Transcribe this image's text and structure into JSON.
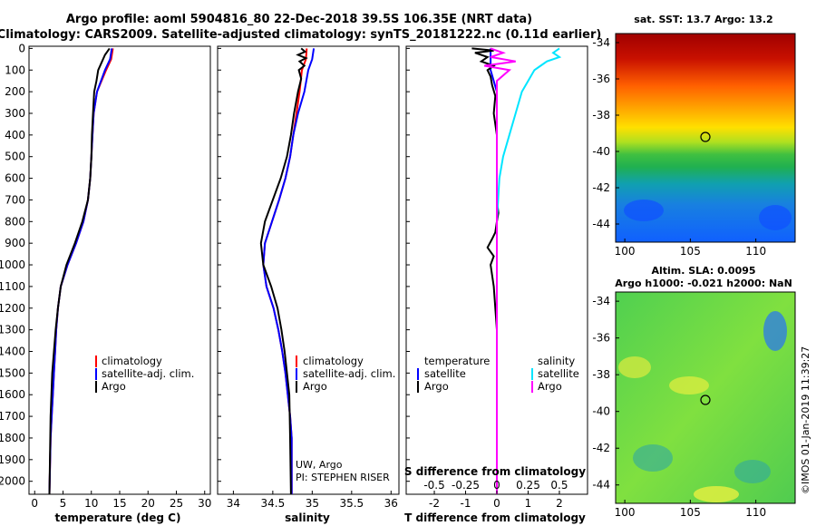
{
  "title": {
    "line1": "Argo profile: aoml 5904816_80 22-Dec-2018 39.5S 106.35E (NRT data)",
    "line2": "Climatology: CARS2009. Satellite-adjusted climatology: synTS_20181222.nc (0.11d earlier)"
  },
  "colors": {
    "climatology": "#ff0000",
    "satellite": "#0000ff",
    "argo": "#000000",
    "salinity_sat": "#00e5ff",
    "salinity_argo": "#ff00ff"
  },
  "depth_ticks": [
    "0",
    "100",
    "200",
    "300",
    "400",
    "500",
    "600",
    "700",
    "800",
    "900",
    "1000",
    "1100",
    "1200",
    "1300",
    "1400",
    "1500",
    "1600",
    "1700",
    "1800",
    "1900",
    "2000"
  ],
  "panels": {
    "temperature": {
      "xlabel": "temperature (deg C)",
      "xticks": [
        "0",
        "5",
        "10",
        "15",
        "20",
        "25",
        "30"
      ],
      "legend": [
        "climatology",
        "satellite-adj. clim.",
        "Argo"
      ]
    },
    "salinity": {
      "xlabel": "salinity",
      "xticks": [
        "34",
        "34.5",
        "35",
        "35.5",
        "36"
      ],
      "legend": [
        "climatology",
        "satellite-adj. clim.",
        "Argo"
      ],
      "note1": "UW, Argo",
      "note2": "PI: STEPHEN RISER"
    },
    "difference": {
      "xlabel": "T difference from climatology",
      "xticks": [
        "-2",
        "-1",
        "0",
        "1",
        "2"
      ],
      "s_label": "S difference from climatology",
      "s_ticks": [
        "-0.5",
        "-0.25",
        "0",
        "0.25",
        "0.5"
      ],
      "legend_t_head": "temperature",
      "legend_t": [
        "satellite",
        "Argo"
      ],
      "legend_s_head": "salinity",
      "legend_s": [
        "satellite",
        "Argo"
      ]
    }
  },
  "maps": {
    "sst_title": "sat. SST: 13.7 Argo: 13.2",
    "sla_title1": "Altim. SLA: 0.0095",
    "sla_title2": "Argo h1000: -0.021 h2000: NaN",
    "lat_ticks": [
      "-34",
      "-36",
      "-38",
      "-40",
      "-42",
      "-44"
    ],
    "lon_ticks": [
      "100",
      "105",
      "110"
    ],
    "credit": "©IMOS 01-Jan-2019 11:39:27"
  },
  "chart_data": [
    {
      "type": "line",
      "title": "",
      "xlabel": "temperature (deg C)",
      "ylabel": "",
      "xlim": [
        -1,
        31
      ],
      "ylim": [
        2060,
        -10
      ],
      "series": [
        {
          "name": "climatology",
          "x": [
            13.8,
            13.5,
            12.6,
            11.0,
            10.4,
            10.2,
            10.0,
            9.8,
            9.4,
            8.6,
            7.3,
            5.8,
            4.6,
            4.1,
            3.8,
            3.6,
            3.4,
            3.2,
            3.0,
            2.8,
            2.6
          ],
          "y": [
            0,
            50,
            100,
            200,
            300,
            400,
            500,
            600,
            700,
            800,
            900,
            1000,
            1100,
            1200,
            1300,
            1400,
            1500,
            1600,
            1700,
            1800,
            2060
          ]
        },
        {
          "name": "satellite-adj. clim.",
          "x": [
            13.6,
            13.3,
            12.4,
            11.0,
            10.4,
            10.2,
            10.0,
            9.8,
            9.4,
            8.6,
            7.3,
            5.8,
            4.6,
            4.1,
            3.8,
            3.6,
            3.4,
            3.2,
            3.0,
            2.8,
            2.6
          ],
          "y": [
            0,
            50,
            100,
            200,
            300,
            400,
            500,
            600,
            700,
            800,
            900,
            1000,
            1100,
            1200,
            1300,
            1400,
            1500,
            1600,
            1700,
            1800,
            2060
          ]
        },
        {
          "name": "Argo",
          "x": [
            13.2,
            12.4,
            11.9,
            11.2,
            10.9,
            10.5,
            10.3,
            10.1,
            10.0,
            9.8,
            9.4,
            8.4,
            7.1,
            5.6,
            4.6,
            4.1,
            3.7,
            3.4,
            3.1,
            2.8,
            2.6
          ],
          "y": [
            0,
            30,
            60,
            100,
            150,
            200,
            300,
            400,
            500,
            600,
            700,
            800,
            900,
            1000,
            1100,
            1200,
            1300,
            1400,
            1500,
            1700,
            2060
          ]
        }
      ]
    },
    {
      "type": "line",
      "title": "",
      "xlabel": "salinity",
      "ylabel": "",
      "xlim": [
        33.8,
        36.1
      ],
      "ylim": [
        2060,
        -10
      ],
      "series": [
        {
          "name": "climatology",
          "x": [
            34.93,
            34.92,
            34.87,
            34.84,
            34.8,
            34.76,
            34.72,
            34.66,
            34.58,
            34.49,
            34.4,
            34.38,
            34.42,
            34.51,
            34.57,
            34.62,
            34.66,
            34.69,
            34.72,
            34.74,
            34.74
          ],
          "y": [
            0,
            50,
            100,
            200,
            300,
            400,
            500,
            600,
            700,
            800,
            900,
            1000,
            1100,
            1200,
            1300,
            1400,
            1500,
            1600,
            1700,
            1800,
            2060
          ]
        },
        {
          "name": "satellite-adj. clim.",
          "x": [
            35.02,
            35.0,
            34.95,
            34.9,
            34.82,
            34.76,
            34.72,
            34.66,
            34.58,
            34.49,
            34.4,
            34.38,
            34.42,
            34.51,
            34.57,
            34.62,
            34.66,
            34.69,
            34.72,
            34.74,
            34.74
          ],
          "y": [
            0,
            50,
            100,
            200,
            300,
            400,
            500,
            600,
            700,
            800,
            900,
            1000,
            1100,
            1200,
            1300,
            1400,
            1500,
            1600,
            1700,
            1800,
            2060
          ]
        },
        {
          "name": "Argo",
          "x": [
            34.86,
            34.91,
            34.82,
            34.92,
            34.84,
            34.9,
            34.83,
            34.86,
            34.82,
            34.77,
            34.73,
            34.68,
            34.6,
            34.5,
            34.4,
            34.35,
            34.38,
            34.48,
            34.56,
            34.61,
            34.65,
            34.68,
            34.71,
            34.72,
            34.73
          ],
          "y": [
            0,
            15,
            30,
            45,
            60,
            80,
            100,
            140,
            200,
            300,
            400,
            500,
            600,
            700,
            800,
            900,
            1000,
            1100,
            1200,
            1300,
            1400,
            1500,
            1600,
            1800,
            2060
          ]
        }
      ]
    },
    {
      "type": "line",
      "title": "",
      "xlabel": "T difference from climatology",
      "ylabel": "",
      "xlim": [
        -2.9,
        2.9
      ],
      "ylim": [
        2060,
        -10
      ],
      "series": [
        {
          "name": "temperature satellite",
          "x": [
            -0.2,
            -0.2,
            -0.2,
            0,
            0,
            0,
            0,
            0,
            0,
            0,
            0,
            0,
            0,
            0,
            0,
            0,
            0,
            0,
            0
          ],
          "y": [
            0,
            50,
            100,
            200,
            300,
            400,
            500,
            600,
            700,
            800,
            900,
            1000,
            1100,
            1200,
            1300,
            1400,
            1500,
            1700,
            2060
          ]
        },
        {
          "name": "temperature Argo",
          "x": [
            -0.8,
            -0.1,
            -0.7,
            -0.3,
            -0.5,
            -0.1,
            -0.3,
            -0.2,
            -0.15,
            -0.05,
            -0.1,
            0,
            0,
            0,
            0,
            0.05,
            0,
            -0.05,
            -0.15,
            -0.3,
            -0.1,
            -0.2,
            -0.1,
            0,
            0,
            0,
            0
          ],
          "y": [
            0,
            10,
            20,
            40,
            60,
            80,
            100,
            130,
            170,
            220,
            300,
            400,
            500,
            600,
            700,
            760,
            800,
            850,
            880,
            920,
            960,
            1000,
            1100,
            1300,
            1500,
            1800,
            2060
          ]
        },
        {
          "name": "salinity satellite",
          "x": [
            0.5,
            0.45,
            0.5,
            0.4,
            0.35,
            0.3,
            0.25,
            0.2,
            0.15,
            0.1,
            0.05,
            0.02,
            0,
            0,
            0,
            0,
            0
          ],
          "y": [
            0,
            20,
            40,
            60,
            80,
            100,
            150,
            200,
            300,
            400,
            500,
            600,
            800,
            1000,
            1400,
            1800,
            2060
          ]
        },
        {
          "name": "salinity Argo",
          "x": [
            -0.05,
            0.05,
            -0.05,
            0.15,
            -0.1,
            0.1,
            0,
            0,
            0,
            0,
            0,
            0,
            0,
            0
          ],
          "y": [
            0,
            20,
            40,
            60,
            80,
            100,
            150,
            300,
            500,
            800,
            1100,
            1400,
            1800,
            2060
          ]
        }
      ]
    }
  ]
}
